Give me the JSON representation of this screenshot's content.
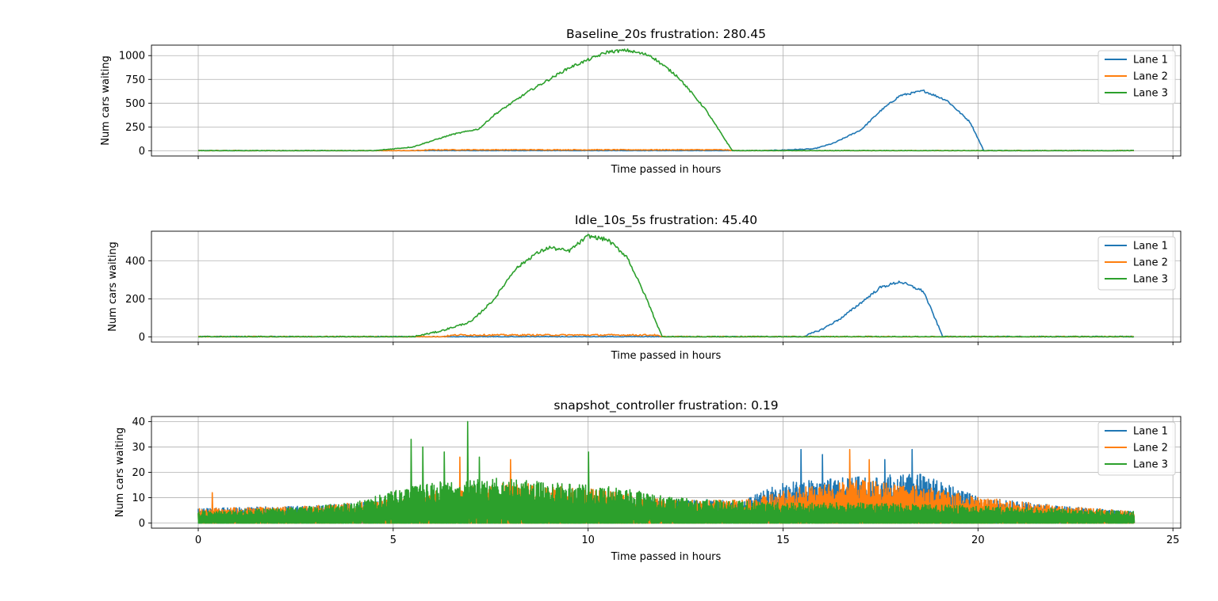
{
  "colors": {
    "lane1": "#1f77b4",
    "lane2": "#ff7f0e",
    "lane3": "#2ca02c",
    "grid": "#b0b0b0"
  },
  "chart_data": [
    {
      "type": "line",
      "title": "Baseline_20s frustration: 280.45",
      "xlabel": "Time passed in hours",
      "ylabel": "Num cars waiting",
      "xlim": [
        -1.2,
        25.2
      ],
      "ylim": [
        -55,
        1110
      ],
      "x_ticks": [
        0,
        5,
        10,
        15,
        20,
        25
      ],
      "show_x_tick_labels": false,
      "y_ticks": [
        0,
        250,
        500,
        750,
        1000
      ],
      "y_tick_labels": [
        "0",
        "250",
        "500",
        "750",
        "1000"
      ],
      "grid": true,
      "legend_position": "upper right",
      "noise_amplitude": 4,
      "series": [
        {
          "name": "Lane 1",
          "color": "#1f77b4",
          "x": [
            0,
            14.5,
            15.8,
            16.3,
            17.0,
            17.5,
            18.0,
            18.6,
            19.2,
            19.8,
            20.15,
            24
          ],
          "y": [
            0,
            0,
            20,
            80,
            220,
            420,
            580,
            630,
            530,
            300,
            0,
            0
          ]
        },
        {
          "name": "Lane 2",
          "color": "#ff7f0e",
          "x": [
            0,
            5.5,
            6.0,
            13.5,
            13.8,
            24
          ],
          "y": [
            0,
            0,
            10,
            10,
            0,
            0
          ]
        },
        {
          "name": "Lane 3",
          "color": "#2ca02c",
          "x": [
            0,
            4.5,
            5.5,
            6.5,
            7.2,
            7.6,
            8.5,
            9.5,
            10.5,
            11.0,
            11.6,
            12.3,
            13.0,
            13.7,
            24
          ],
          "y": [
            0,
            0,
            40,
            170,
            230,
            380,
            630,
            870,
            1040,
            1055,
            1000,
            780,
            440,
            0,
            0
          ]
        }
      ]
    },
    {
      "type": "line",
      "title": "Idle_10s_5s frustration: 45.40",
      "xlabel": "Time passed in hours",
      "ylabel": "Num cars waiting",
      "xlim": [
        -1.2,
        25.2
      ],
      "ylim": [
        -27,
        555
      ],
      "x_ticks": [
        0,
        5,
        10,
        15,
        20,
        25
      ],
      "show_x_tick_labels": false,
      "y_ticks": [
        0,
        200,
        400
      ],
      "y_tick_labels": [
        "0",
        "200",
        "400"
      ],
      "grid": true,
      "legend_position": "upper right",
      "noise_amplitude": 4,
      "series": [
        {
          "name": "Lane 1",
          "color": "#1f77b4",
          "x": [
            0,
            15.5,
            16.0,
            16.5,
            17.0,
            17.5,
            18.0,
            18.6,
            19.1,
            24
          ],
          "y": [
            0,
            0,
            40,
            100,
            180,
            260,
            290,
            240,
            0,
            0
          ]
        },
        {
          "name": "Lane 2",
          "color": "#ff7f0e",
          "x": [
            0,
            6.2,
            6.6,
            11.7,
            11.9,
            24
          ],
          "y": [
            0,
            0,
            10,
            10,
            0,
            0
          ]
        },
        {
          "name": "Lane 3",
          "color": "#2ca02c",
          "x": [
            0,
            5.5,
            6.2,
            7.0,
            7.6,
            8.1,
            8.6,
            9.0,
            9.5,
            10.0,
            10.5,
            11.0,
            11.5,
            11.9,
            24
          ],
          "y": [
            0,
            0,
            30,
            80,
            200,
            350,
            430,
            470,
            450,
            530,
            510,
            420,
            200,
            0,
            0
          ]
        }
      ]
    },
    {
      "type": "line",
      "title": "snapshot_controller frustration: 0.19",
      "xlabel": "Time passed in hours",
      "ylabel": "Num cars waiting",
      "xlim": [
        -1.2,
        25.2
      ],
      "ylim": [
        -2,
        42
      ],
      "x_ticks": [
        0,
        5,
        10,
        15,
        20,
        25
      ],
      "x_tick_labels": [
        "0",
        "5",
        "10",
        "15",
        "20",
        "25"
      ],
      "show_x_tick_labels": true,
      "y_ticks": [
        0,
        10,
        20,
        30,
        40
      ],
      "y_tick_labels": [
        "0",
        "10",
        "20",
        "30",
        "40"
      ],
      "grid": true,
      "legend_position": "upper right",
      "noisy": true,
      "series": [
        {
          "name": "Lane 1",
          "color": "#1f77b4",
          "env_x": [
            0,
            3,
            5,
            8,
            12,
            14,
            15,
            17,
            18.5,
            20,
            22,
            24
          ],
          "env_y": [
            5,
            6,
            8,
            9,
            8,
            8,
            14,
            16,
            17,
            9,
            6,
            4
          ],
          "peaks": [
            [
              15.45,
              29
            ],
            [
              18.3,
              29
            ],
            [
              16.0,
              27
            ],
            [
              17.6,
              25
            ]
          ]
        },
        {
          "name": "Lane 2",
          "color": "#ff7f0e",
          "env_x": [
            0,
            3,
            5,
            6.5,
            8,
            10,
            12,
            14,
            16,
            17,
            18.5,
            20,
            22,
            24
          ],
          "env_y": [
            5,
            6,
            8,
            12,
            14,
            12,
            8,
            8,
            14,
            15,
            13,
            9,
            6,
            4
          ],
          "peaks": [
            [
              6.7,
              26
            ],
            [
              8.0,
              25
            ],
            [
              16.7,
              29
            ],
            [
              17.2,
              25
            ],
            [
              0.35,
              12
            ]
          ]
        },
        {
          "name": "Lane 3",
          "color": "#2ca02c",
          "env_x": [
            0,
            2,
            4,
            5,
            6,
            7,
            8,
            10,
            11,
            12,
            13,
            15,
            17,
            20,
            22,
            24
          ],
          "env_y": [
            4,
            5,
            7,
            11,
            14,
            16,
            15,
            13,
            12,
            9,
            8,
            7,
            7,
            6,
            5,
            4
          ],
          "peaks": [
            [
              5.45,
              33
            ],
            [
              6.9,
              40
            ],
            [
              10.0,
              28
            ],
            [
              5.75,
              30
            ],
            [
              6.3,
              28
            ],
            [
              7.2,
              26
            ]
          ]
        }
      ]
    }
  ]
}
